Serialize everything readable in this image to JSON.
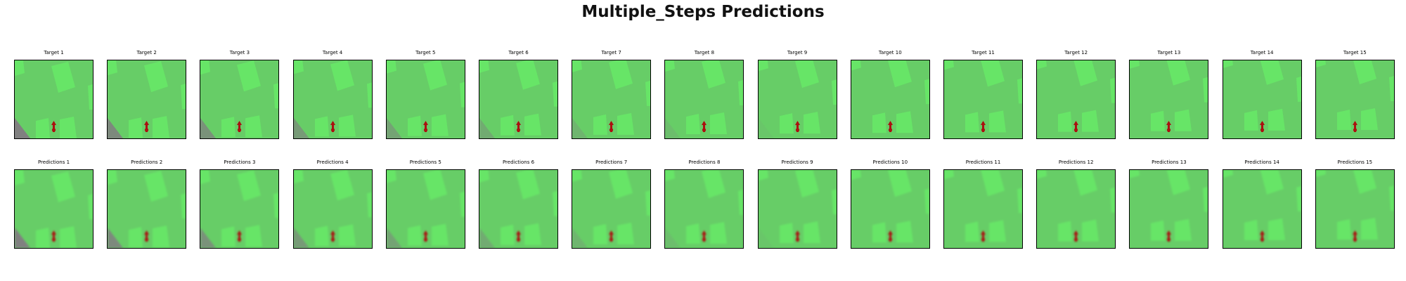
{
  "title": "Multiple_Steps Predictions",
  "colors": {
    "background": "#67cd67",
    "building": "#67e567",
    "road": "#808080",
    "agent": "#aa1111"
  },
  "rows": [
    {
      "kind": "target",
      "panels": [
        {
          "label": "Target 1"
        },
        {
          "label": "Target 2"
        },
        {
          "label": "Target 3"
        },
        {
          "label": "Target 4"
        },
        {
          "label": "Target 5"
        },
        {
          "label": "Target 6"
        },
        {
          "label": "Target 7"
        },
        {
          "label": "Target 8"
        },
        {
          "label": "Target 9"
        },
        {
          "label": "Target 10"
        },
        {
          "label": "Target 11"
        },
        {
          "label": "Target 12"
        },
        {
          "label": "Target 13"
        },
        {
          "label": "Target 14"
        },
        {
          "label": "Target 15"
        }
      ]
    },
    {
      "kind": "prediction",
      "panels": [
        {
          "label": "Predictions 1"
        },
        {
          "label": "Predictions 2"
        },
        {
          "label": "Predictions 3"
        },
        {
          "label": "Predictions 4"
        },
        {
          "label": "Predictions 5"
        },
        {
          "label": "Predictions 6"
        },
        {
          "label": "Predictions 7"
        },
        {
          "label": "Predictions 8"
        },
        {
          "label": "Predictions 9"
        },
        {
          "label": "Predictions 10"
        },
        {
          "label": "Predictions 11"
        },
        {
          "label": "Predictions 12"
        },
        {
          "label": "Predictions 13"
        },
        {
          "label": "Predictions 14"
        },
        {
          "label": "Predictions 15"
        }
      ]
    }
  ]
}
